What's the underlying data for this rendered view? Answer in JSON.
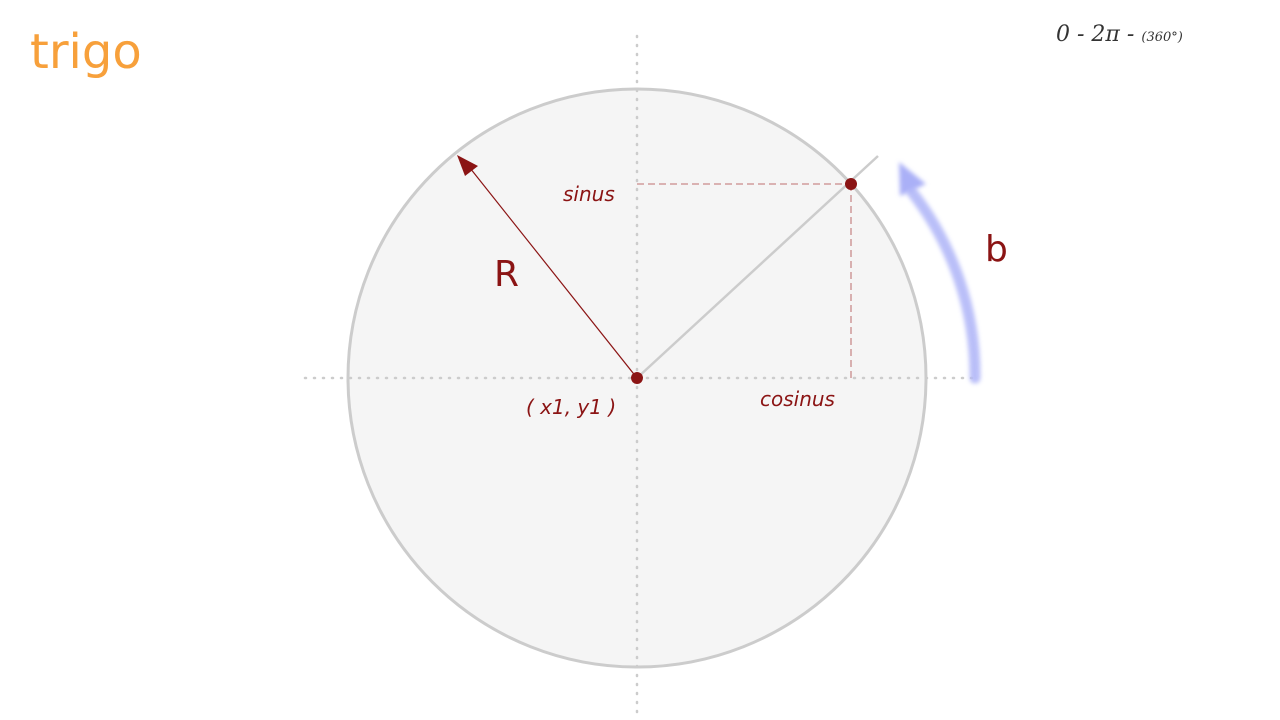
{
  "header": {
    "title": "trigo",
    "range": {
      "main": "0 - 2π -",
      "sub": "(360°)"
    }
  },
  "diagram": {
    "labels": {
      "radius": "R",
      "sine": "sinus",
      "cosine": "cosinus",
      "center": "( x1, y1 )",
      "angle": "b"
    },
    "colors": {
      "title": "#f7a03b",
      "accent": "#8b1414",
      "accent_light": "#c98a8a",
      "circle_fill": "#f5f5f5",
      "circle_stroke": "#cccccc",
      "axis": "#cccccc",
      "rotation_arrow": "#aab0f7",
      "text": "#333333"
    }
  }
}
